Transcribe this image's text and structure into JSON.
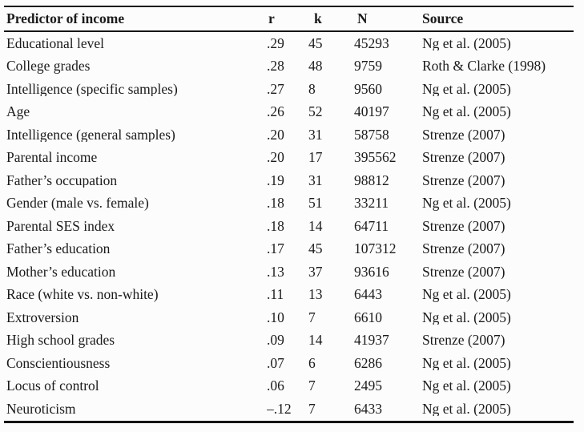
{
  "table": {
    "columns": {
      "predictor": "Predictor of income",
      "r": "r",
      "k": "k",
      "n": "N",
      "source": "Source"
    },
    "rows": [
      {
        "predictor": "Educational level",
        "r": ".29",
        "k": "45",
        "n": "45293",
        "source": "Ng et al. (2005)"
      },
      {
        "predictor": "College grades",
        "r": ".28",
        "k": "48",
        "n": "9759",
        "source": "Roth & Clarke (1998)"
      },
      {
        "predictor": "Intelligence (specific samples)",
        "r": ".27",
        "k": "8",
        "n": "9560",
        "source": "Ng et al. (2005)"
      },
      {
        "predictor": "Age",
        "r": ".26",
        "k": "52",
        "n": "40197",
        "source": "Ng et al. (2005)"
      },
      {
        "predictor": "Intelligence (general samples)",
        "r": ".20",
        "k": "31",
        "n": "58758",
        "source": "Strenze (2007)"
      },
      {
        "predictor": "Parental income",
        "r": ".20",
        "k": "17",
        "n": "395562",
        "source": "Strenze (2007)"
      },
      {
        "predictor": "Father’s occupation",
        "r": ".19",
        "k": "31",
        "n": "98812",
        "source": "Strenze (2007)"
      },
      {
        "predictor": "Gender (male vs. female)",
        "r": ".18",
        "k": "51",
        "n": "33211",
        "source": "Ng et al. (2005)"
      },
      {
        "predictor": "Parental SES index",
        "r": ".18",
        "k": "14",
        "n": "64711",
        "source": "Strenze (2007)"
      },
      {
        "predictor": "Father’s education",
        "r": ".17",
        "k": "45",
        "n": "107312",
        "source": "Strenze (2007)"
      },
      {
        "predictor": "Mother’s education",
        "r": ".13",
        "k": "37",
        "n": "93616",
        "source": "Strenze (2007)"
      },
      {
        "predictor": "Race (white vs. non-white)",
        "r": ".11",
        "k": "13",
        "n": "6443",
        "source": "Ng et al. (2005)"
      },
      {
        "predictor": "Extroversion",
        "r": ".10",
        "k": "7",
        "n": "6610",
        "source": "Ng et al. (2005)"
      },
      {
        "predictor": "High school grades",
        "r": ".09",
        "k": "14",
        "n": "41937",
        "source": "Strenze (2007)"
      },
      {
        "predictor": "Conscientiousness",
        "r": ".07",
        "k": "6",
        "n": "6286",
        "source": "Ng et al. (2005)"
      },
      {
        "predictor": "Locus of control",
        "r": ".06",
        "k": "7",
        "n": "2495",
        "source": "Ng et al. (2005)"
      },
      {
        "predictor": "Neuroticism",
        "r": "–.12",
        "k": "7",
        "n": "6433",
        "source": "Ng et al. (2005)"
      }
    ]
  }
}
